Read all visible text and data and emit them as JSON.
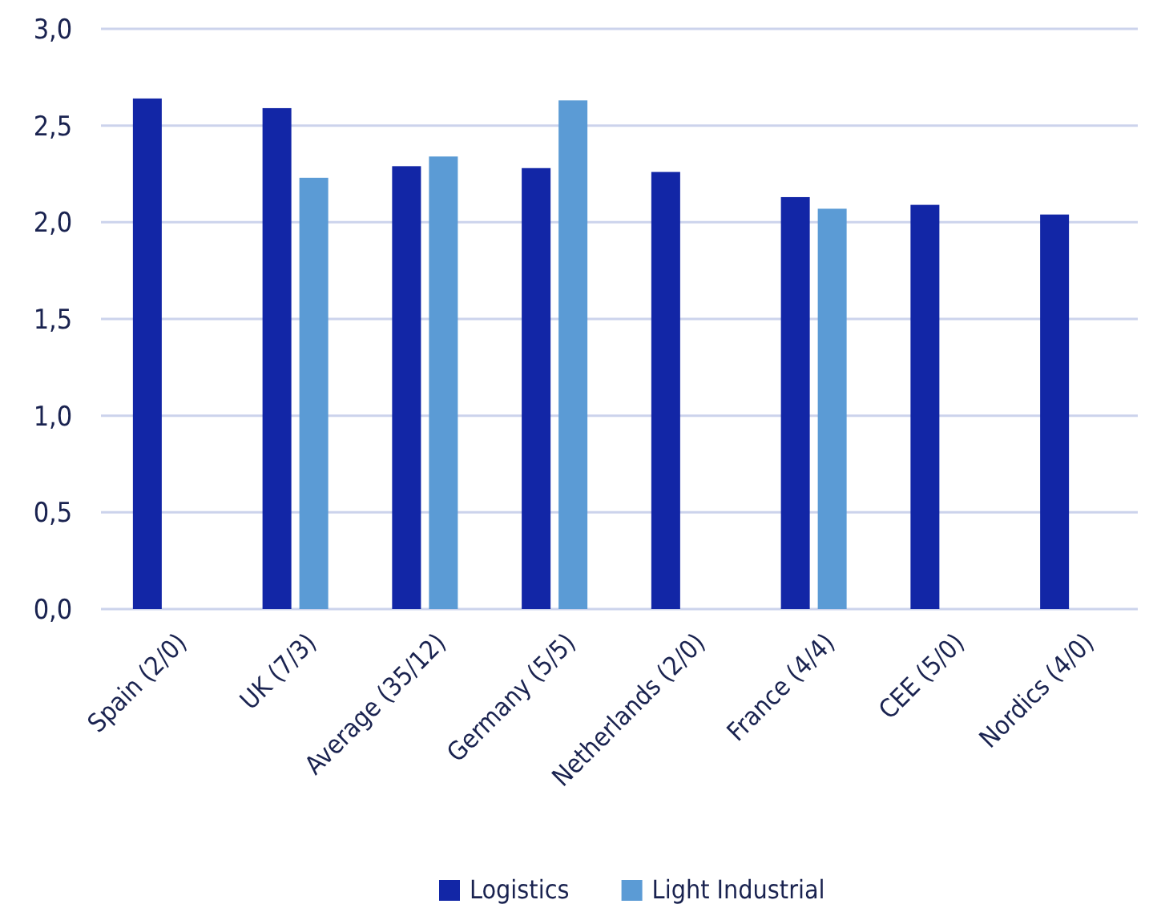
{
  "chart_data": {
    "type": "bar",
    "categories": [
      "Spain (2/0)",
      "UK (7/3)",
      "Average (35/12)",
      "Germany (5/5)",
      "Netherlands (2/0)",
      "France (4/4)",
      "CEE (5/0)",
      "Nordics (4/0)"
    ],
    "series": [
      {
        "name": "Logistics",
        "color": "#1226a6",
        "values": [
          2.64,
          2.59,
          2.29,
          2.28,
          2.26,
          2.13,
          2.09,
          2.04
        ]
      },
      {
        "name": "Light Industrial",
        "color": "#5b9bd5",
        "values": [
          null,
          2.23,
          2.34,
          2.63,
          null,
          2.07,
          null,
          null
        ]
      }
    ],
    "ylim": [
      0,
      3
    ],
    "yticks": [
      {
        "value": 0,
        "label": "0,0"
      },
      {
        "value": 0.5,
        "label": "0,5"
      },
      {
        "value": 1,
        "label": "1,0"
      },
      {
        "value": 1.5,
        "label": "1,5"
      },
      {
        "value": 2,
        "label": "2,0"
      },
      {
        "value": 2.5,
        "label": "2,5"
      },
      {
        "value": 3,
        "label": "3,0"
      }
    ],
    "grid": "y",
    "legend": "bottom"
  }
}
